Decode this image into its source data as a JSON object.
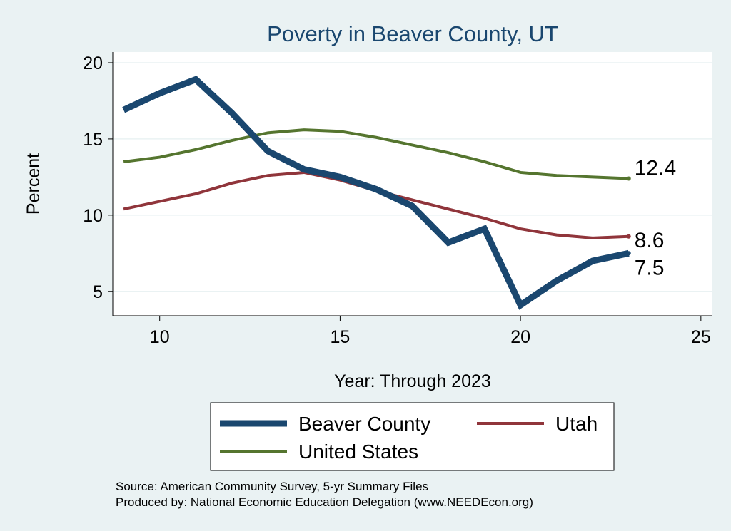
{
  "chart_data": {
    "type": "line",
    "title": "Poverty in Beaver County, UT",
    "xlabel": "Year: Through 2023",
    "ylabel": "Percent",
    "xlim": [
      8.7,
      25.3
    ],
    "ylim": [
      3.4,
      20.7
    ],
    "xticks": [
      10,
      15,
      20,
      25
    ],
    "yticks": [
      5,
      10,
      15,
      20
    ],
    "grid": true,
    "legend_position": "bottom",
    "x": [
      9,
      10,
      11,
      12,
      13,
      14,
      15,
      16,
      17,
      18,
      19,
      20,
      21,
      22,
      23
    ],
    "series": [
      {
        "name": "Beaver County",
        "color": "#1a476f",
        "width": 9,
        "values": [
          16.9,
          18.0,
          18.9,
          16.7,
          14.2,
          13.0,
          12.5,
          11.7,
          10.6,
          8.2,
          9.1,
          4.1,
          5.7,
          7.0,
          7.5
        ],
        "end_label": "7.5"
      },
      {
        "name": "Utah",
        "color": "#90353b",
        "width": 4,
        "values": [
          10.4,
          10.9,
          11.4,
          12.1,
          12.6,
          12.8,
          12.3,
          11.6,
          11.0,
          10.4,
          9.8,
          9.1,
          8.7,
          8.5,
          8.6
        ],
        "end_label": "8.6"
      },
      {
        "name": "United States",
        "color": "#55752f",
        "width": 4,
        "values": [
          13.5,
          13.8,
          14.3,
          14.9,
          15.4,
          15.6,
          15.5,
          15.1,
          14.6,
          14.1,
          13.5,
          12.8,
          12.6,
          12.5,
          12.4
        ],
        "end_label": "12.4"
      }
    ],
    "notes": [
      "Source: American Community Survey, 5-yr Summary Files",
      "Produced by: National Economic Education Delegation (www.NEEDEcon.org)"
    ]
  }
}
